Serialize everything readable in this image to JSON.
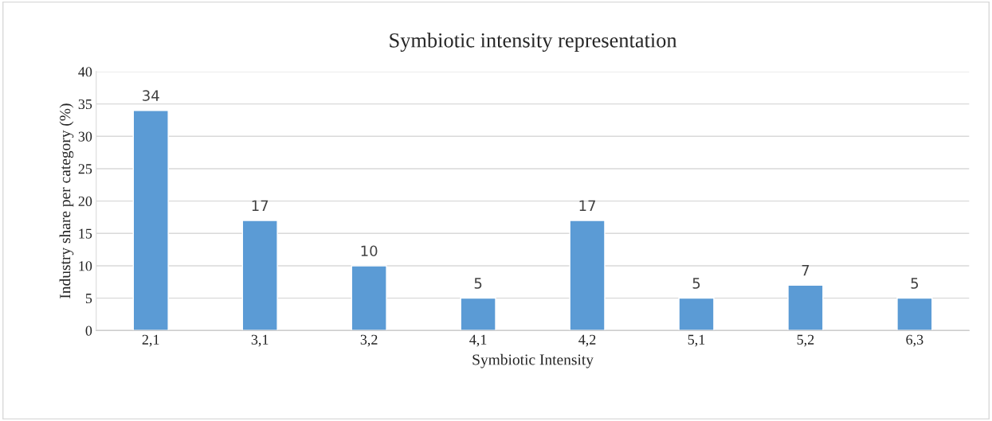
{
  "chart_data": {
    "type": "bar",
    "title": "Symbiotic intensity representation",
    "xlabel": "Symbiotic Intensity",
    "ylabel": "Industry share per category (%)",
    "categories": [
      "2,1",
      "3,1",
      "3,2",
      "4,1",
      "4,2",
      "5,1",
      "5,2",
      "6,3"
    ],
    "values": [
      34,
      17,
      10,
      5,
      17,
      5,
      7,
      5
    ],
    "color": "#5b9bd5",
    "ylim": [
      0,
      40
    ],
    "yticks": [
      0,
      5,
      10,
      15,
      20,
      25,
      30,
      35,
      40
    ],
    "grid": "y",
    "data_labels": true,
    "legend": false
  }
}
